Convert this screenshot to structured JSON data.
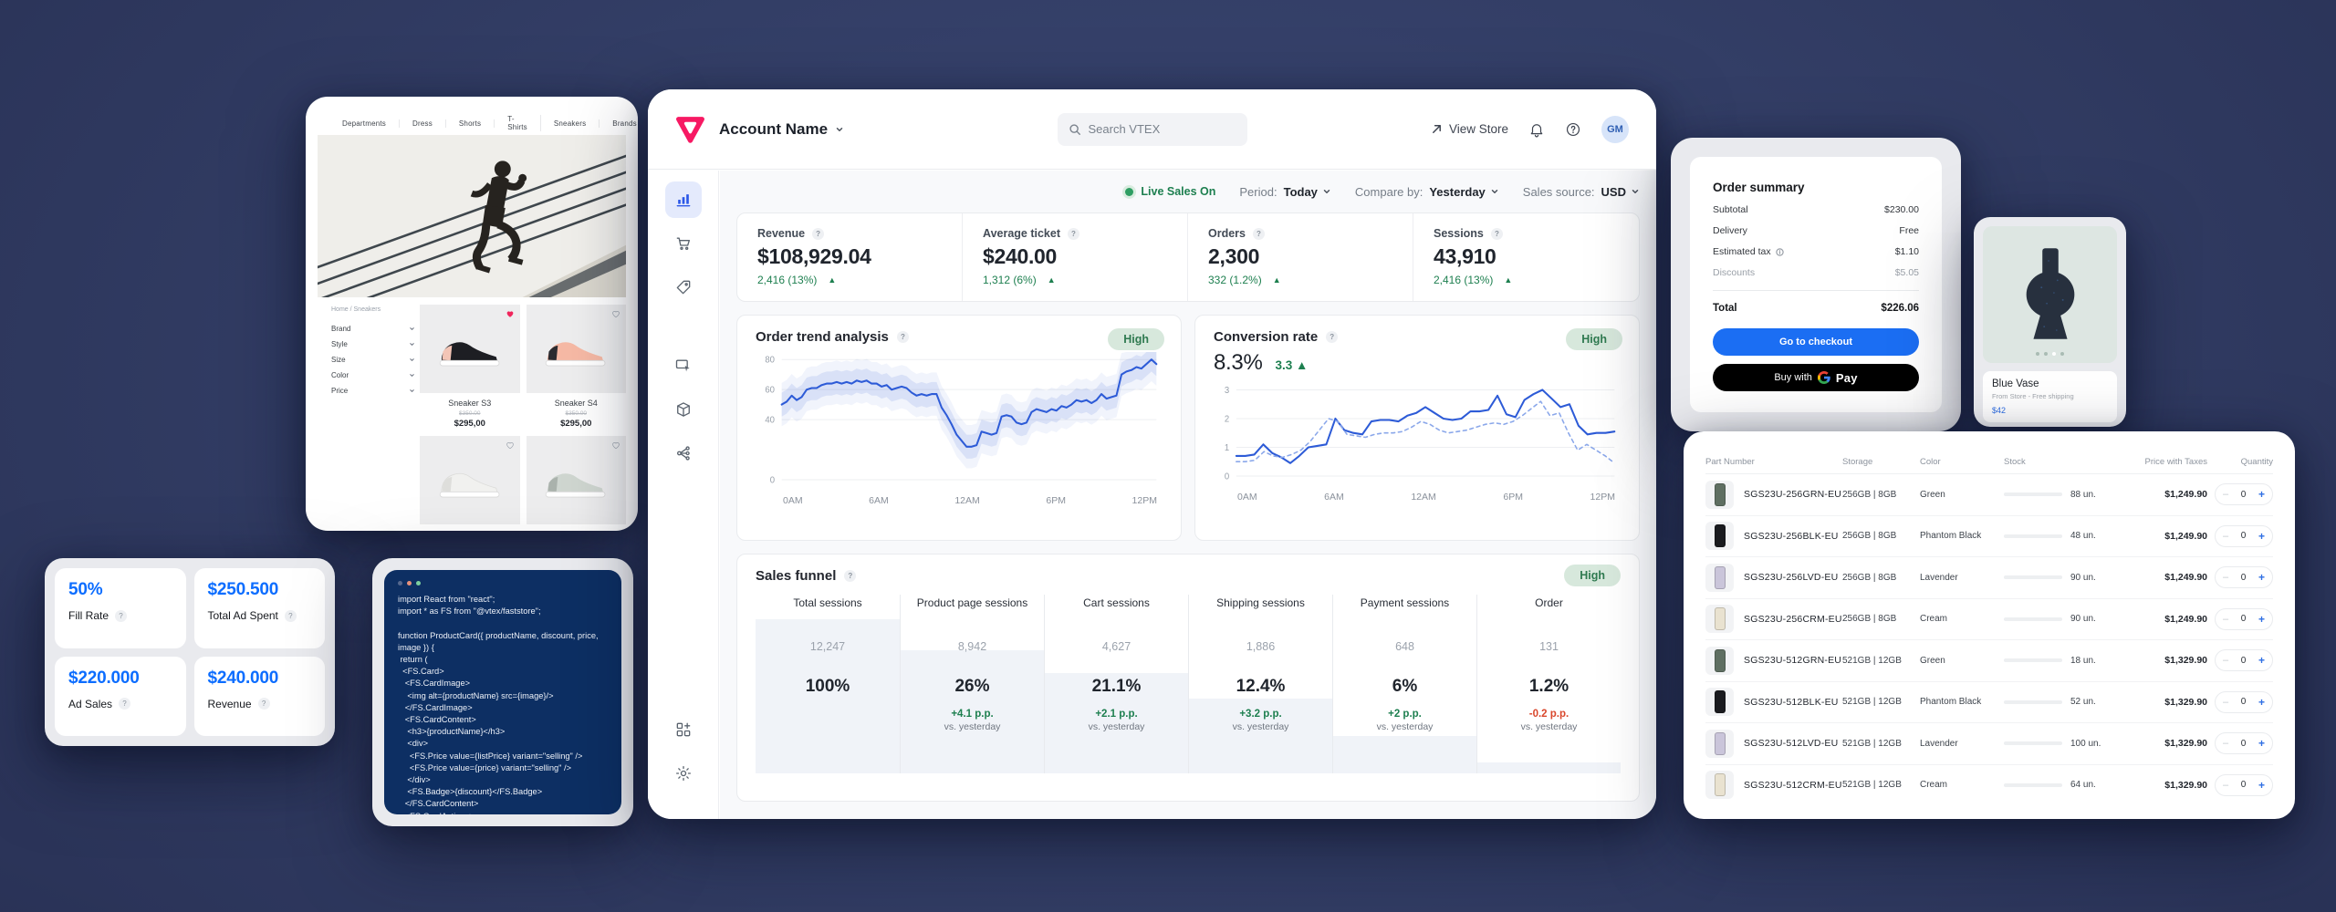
{
  "storefront": {
    "nav": [
      "Departments",
      "Dress",
      "Shorts",
      "T-Shirts",
      "Sneakers",
      "Brands"
    ],
    "breadcrumb": "Home / Sneakers",
    "filters": [
      "Brand",
      "Style",
      "Size",
      "Color",
      "Price"
    ],
    "products": [
      {
        "name": "Sneaker S3",
        "list_price": "$350.00",
        "price": "$295,00",
        "liked": true,
        "swatch": "#1d1e23",
        "accent": "#f3c5b6"
      },
      {
        "name": "Sneaker S4",
        "list_price": "$350.00",
        "price": "$295,00",
        "liked": false,
        "swatch": "#f6b9a5",
        "accent": "#2a2b30"
      },
      {
        "name": "",
        "list_price": "",
        "price": "",
        "liked": false,
        "swatch": "#f1f1ef",
        "accent": "#dededb"
      },
      {
        "name": "",
        "list_price": "",
        "price": "",
        "liked": false,
        "swatch": "#cfd6d0",
        "accent": "#aab2ac"
      }
    ]
  },
  "ad": {
    "cards": [
      {
        "value": "50%",
        "label": "Fill Rate"
      },
      {
        "value": "$250.500",
        "label": "Total Ad Spent"
      },
      {
        "value": "$220.000",
        "label": "Ad Sales"
      },
      {
        "value": "$240.000",
        "label": "Revenue"
      }
    ]
  },
  "code": {
    "code": "import React from \"react\";\nimport * as FS from \"@vtex/faststore\";\n\nfunction ProductCard({ productName, discount, price,\nimage }) {\n return (\n  <FS.Card>\n   <FS.CardImage>\n    <img alt={productName} src={image}/>\n   </FS.CardImage>\n   <FS.CardContent>\n    <h3>{productName}</h3>\n    <div>\n     <FS.Price value={listPrice} variant=\"selling\" />\n     <FS.Price value={price} variant=\"selling\" />\n    </div>\n    <FS.Badge>{discount}</FS.Badge>\n   </FS.CardContent>\n   <FS.CardActions>"
  },
  "dash": {
    "account": "Account Name",
    "search": "Search VTEX",
    "view_store": "View Store",
    "avatar": "GM",
    "live": "Live Sales On",
    "period_label": "Period:",
    "period": "Today",
    "compare_label": "Compare by:",
    "compare": "Yesterday",
    "source_label": "Sales source:",
    "source": "USD",
    "metrics": [
      {
        "label": "Revenue",
        "value": "$108,929.04",
        "delta": "2,416 (13%)"
      },
      {
        "label": "Average ticket",
        "value": "$240.00",
        "delta": "1,312 (6%)"
      },
      {
        "label": "Orders",
        "value": "2,300",
        "delta": "332 (1.2%)"
      },
      {
        "label": "Sessions",
        "value": "43,910",
        "delta": "2,416 (13%)"
      }
    ]
  },
  "chart_data": [
    {
      "id": "order-trend",
      "type": "line",
      "title": "Order trend analysis",
      "badge": "High",
      "x_ticks": [
        "0AM",
        "6AM",
        "12AM",
        "6PM",
        "12PM"
      ],
      "y_ticks": [
        80,
        60,
        40,
        0
      ],
      "ylim": [
        0,
        85
      ],
      "grid": true,
      "band": 8,
      "series": [
        {
          "name": "orders",
          "style": "solid",
          "values": [
            50,
            52,
            56,
            53,
            55,
            60,
            61,
            61,
            63,
            64,
            64,
            65,
            64,
            65,
            64,
            66,
            65,
            66,
            64,
            64,
            62,
            63,
            60,
            61,
            62,
            61,
            58,
            56,
            57,
            56,
            57,
            57,
            48,
            43,
            37,
            30,
            26,
            22,
            22,
            23,
            32,
            31,
            30,
            31,
            42,
            43,
            42,
            38,
            37,
            38,
            45,
            47,
            46,
            45,
            47,
            46,
            49,
            48,
            50,
            53,
            52,
            53,
            51,
            53,
            57,
            54,
            55,
            56,
            70,
            72,
            73,
            75,
            74,
            77,
            80,
            77
          ]
        }
      ]
    },
    {
      "id": "conversion-rate",
      "type": "line",
      "title": "Conversion rate",
      "badge": "High",
      "value": "8.3%",
      "delta": "3.3",
      "x_ticks": [
        "0AM",
        "6AM",
        "12AM",
        "6PM",
        "12PM"
      ],
      "y_ticks": [
        3,
        2,
        1,
        0
      ],
      "ylim": [
        0,
        3.3
      ],
      "grid": true,
      "series": [
        {
          "name": "today",
          "style": "solid",
          "values": [
            0.7,
            0.7,
            0.75,
            1.1,
            0.8,
            0.65,
            0.45,
            0.7,
            1.0,
            1.05,
            1.1,
            2.0,
            1.6,
            1.5,
            1.45,
            1.9,
            1.95,
            1.95,
            1.9,
            2.1,
            2.2,
            2.4,
            2.2,
            2.0,
            1.95,
            2.0,
            2.25,
            2.25,
            2.3,
            2.8,
            2.15,
            2.05,
            2.65,
            2.85,
            3.0,
            2.7,
            2.4,
            2.5,
            1.75,
            1.45,
            1.5,
            1.5,
            1.55
          ]
        },
        {
          "name": "yesterday",
          "style": "dashed",
          "values": [
            0.5,
            0.5,
            0.55,
            0.85,
            0.7,
            0.65,
            0.75,
            0.9,
            1.2,
            1.6,
            2.0,
            1.9,
            1.45,
            1.4,
            1.35,
            1.45,
            1.5,
            1.5,
            1.55,
            1.7,
            1.9,
            1.8,
            1.6,
            1.5,
            1.55,
            1.6,
            1.7,
            1.8,
            1.85,
            1.8,
            1.9,
            2.1,
            2.35,
            2.6,
            2.1,
            2.2,
            1.5,
            0.9,
            1.1,
            0.9,
            0.7,
            0.45
          ]
        }
      ]
    }
  ],
  "funnel": {
    "title": "Sales funnel",
    "badge": "High",
    "cols": [
      {
        "h": "Total sessions",
        "count": "12,247",
        "pct": "100%",
        "delta": "",
        "vs": ""
      },
      {
        "h": "Product page sessions",
        "count": "8,942",
        "pct": "26%",
        "delta": "+4.1 p.p.",
        "vs": "vs. yesterday"
      },
      {
        "h": "Cart sessions",
        "count": "4,627",
        "pct": "21.1%",
        "delta": "+2.1 p.p.",
        "vs": "vs. yesterday"
      },
      {
        "h": "Shipping sessions",
        "count": "1,886",
        "pct": "12.4%",
        "delta": "+3.2 p.p.",
        "vs": "vs. yesterday"
      },
      {
        "h": "Payment sessions",
        "count": "648",
        "pct": "6%",
        "delta": "+2 p.p.",
        "vs": "vs. yesterday"
      },
      {
        "h": "Order",
        "count": "131",
        "pct": "1.2%",
        "delta": "-0.2 p.p.",
        "vs": "vs. yesterday"
      }
    ]
  },
  "order": {
    "title": "Order summary",
    "rows": [
      {
        "label": "Subtotal",
        "value": "$230.00"
      },
      {
        "label": "Delivery",
        "value": "Free"
      },
      {
        "label": "Estimated tax",
        "value": "$1.10"
      },
      {
        "label": "Discounts",
        "value": "$5.05"
      }
    ],
    "total_label": "Total",
    "total_value": "$226.06",
    "checkout": "Go to checkout",
    "buy_with": "Buy with",
    "pay": "Pay"
  },
  "vase": {
    "title": "Blue Vase",
    "subtitle": "From Store - Free shipping",
    "price": "$42"
  },
  "inv": {
    "headers": [
      "Part Number",
      "Storage",
      "Color",
      "Stock",
      "Price with Taxes",
      "Quantity"
    ],
    "minus": "–",
    "plus": "+",
    "rows": [
      {
        "part": "SGS23U-256GRN-EU",
        "storage": "256GB | 8GB",
        "color": "Green",
        "stock": "88 un.",
        "stock_pct": 88,
        "stock_color": "#32373e",
        "swatch": "#5f6f62",
        "price": "$1,249.90",
        "qty": "0"
      },
      {
        "part": "SGS23U-256BLK-EU",
        "storage": "256GB | 8GB",
        "color": "Phantom Black",
        "stock": "48 un.",
        "stock_pct": 48,
        "stock_color": "#e0602f",
        "swatch": "#1a1b1f",
        "price": "$1,249.90",
        "qty": "0"
      },
      {
        "part": "SGS23U-256LVD-EU",
        "storage": "256GB | 8GB",
        "color": "Lavender",
        "stock": "90 un.",
        "stock_pct": 90,
        "stock_color": "#32373e",
        "swatch": "#cac5da",
        "price": "$1,249.90",
        "qty": "0"
      },
      {
        "part": "SGS23U-256CRM-EU",
        "storage": "256GB | 8GB",
        "color": "Cream",
        "stock": "90 un.",
        "stock_pct": 90,
        "stock_color": "#32373e",
        "swatch": "#e9e2d0",
        "price": "$1,249.90",
        "qty": "0"
      },
      {
        "part": "SGS23U-512GRN-EU",
        "storage": "521GB | 12GB",
        "color": "Green",
        "stock": "18 un.",
        "stock_pct": 18,
        "stock_color": "#e34b22",
        "swatch": "#5f6f62",
        "price": "$1,329.90",
        "qty": "0"
      },
      {
        "part": "SGS23U-512BLK-EU",
        "storage": "521GB | 12GB",
        "color": "Phantom Black",
        "stock": "52 un.",
        "stock_pct": 52,
        "stock_color": "#32373e",
        "swatch": "#1a1b1f",
        "price": "$1,329.90",
        "qty": "0"
      },
      {
        "part": "SGS23U-512LVD-EU",
        "storage": "521GB | 12GB",
        "color": "Lavender",
        "stock": "100 un.",
        "stock_pct": 100,
        "stock_color": "#32373e",
        "swatch": "#cac5da",
        "price": "$1,329.90",
        "qty": "0"
      },
      {
        "part": "SGS23U-512CRM-EU",
        "storage": "521GB | 12GB",
        "color": "Cream",
        "stock": "64 un.",
        "stock_pct": 64,
        "stock_color": "#32373e",
        "swatch": "#e9e2d0",
        "price": "$1,329.90",
        "qty": "0"
      }
    ]
  }
}
